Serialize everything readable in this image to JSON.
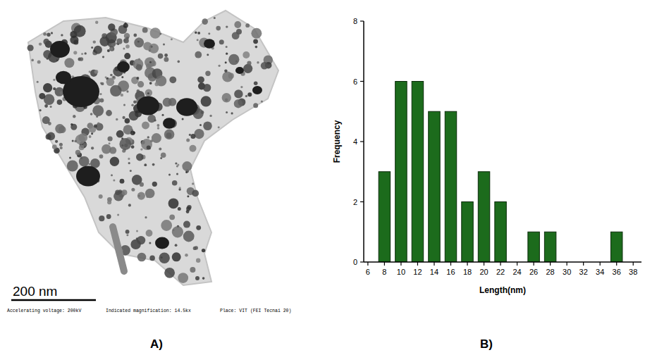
{
  "chart_data": {
    "type": "bar",
    "xlabel": "Length(nm)",
    "ylabel": "Frequency",
    "x": [
      6,
      8,
      10,
      12,
      14,
      16,
      18,
      20,
      22,
      24,
      26,
      28,
      30,
      32,
      34,
      36,
      38
    ],
    "values": [
      0,
      3,
      6,
      6,
      5,
      5,
      2,
      3,
      2,
      0,
      1,
      1,
      0,
      0,
      0,
      1,
      0
    ],
    "color": "#1c6b1c",
    "grid": false,
    "xlim": [
      5.5,
      39
    ],
    "ylim": [
      0,
      8
    ],
    "xticks": [
      6,
      8,
      10,
      12,
      14,
      16,
      18,
      20,
      22,
      24,
      26,
      28,
      30,
      32,
      34,
      36,
      38
    ],
    "yticks": [
      0,
      2,
      4,
      6,
      8
    ]
  },
  "micrograph": {
    "scale_bar": "200 nm",
    "caption": [
      "Accelerating voltage: 200kV",
      "Indicated magnification: 14.5kx",
      "Place: VIT (FEI Tecnai 20)"
    ]
  },
  "panel_labels": [
    "A)",
    "B)"
  ]
}
